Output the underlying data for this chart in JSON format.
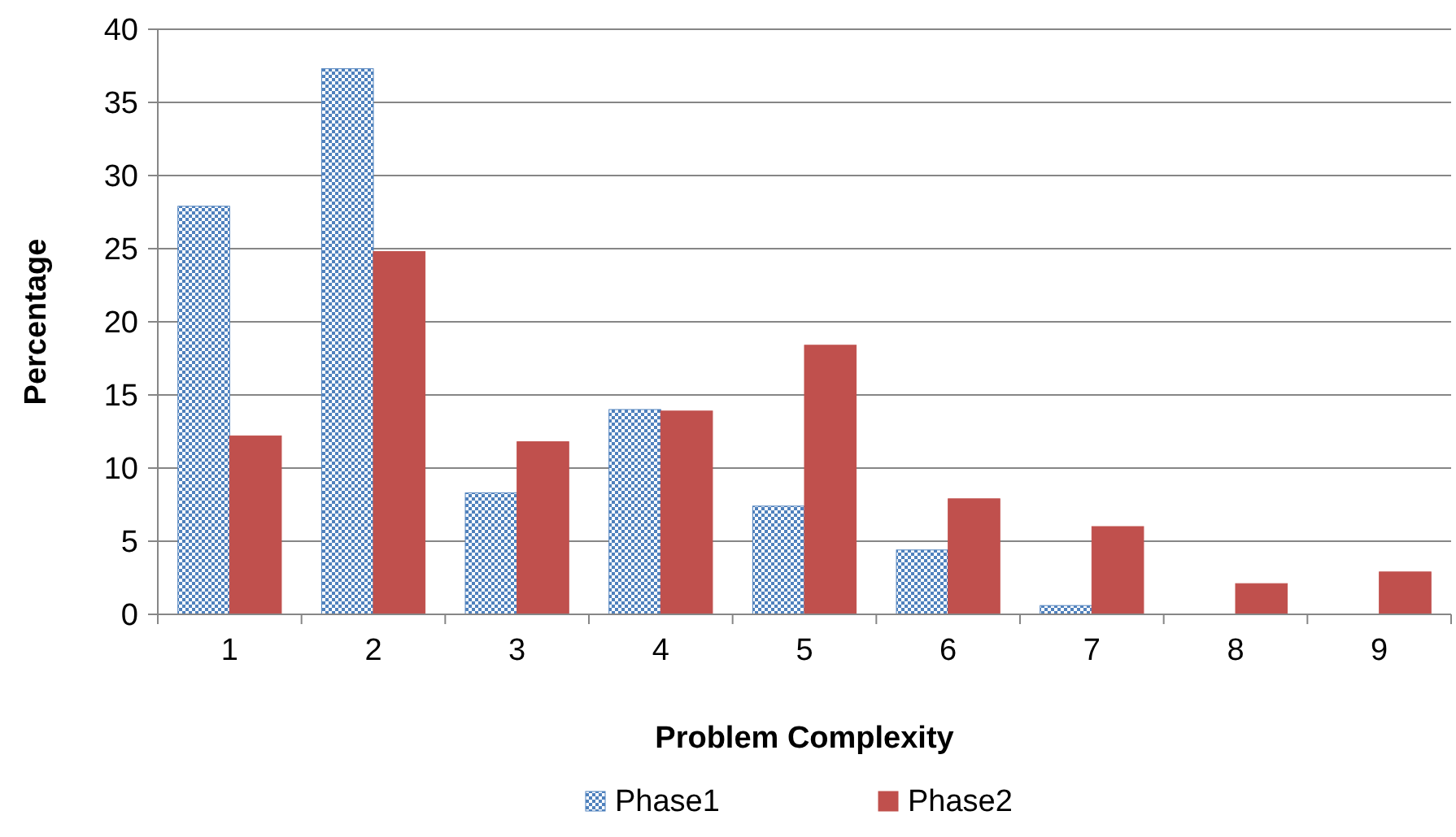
{
  "chart_data": {
    "type": "bar",
    "xlabel": "Problem Complexity",
    "ylabel": "Percentage",
    "categories": [
      "1",
      "2",
      "3",
      "4",
      "5",
      "6",
      "7",
      "8",
      "9"
    ],
    "series": [
      {
        "name": "Phase1",
        "color": "#4f81bd",
        "values": [
          27.9,
          37.3,
          8.3,
          14.0,
          7.4,
          4.4,
          0.6,
          0,
          0
        ]
      },
      {
        "name": "Phase2",
        "color": "#c0504d",
        "values": [
          12.2,
          24.8,
          11.8,
          13.9,
          18.4,
          7.9,
          6.0,
          2.1,
          2.9
        ]
      }
    ],
    "ylim": [
      0,
      40
    ],
    "yticks": [
      0,
      5,
      10,
      15,
      20,
      25,
      30,
      35,
      40
    ],
    "grid": "y",
    "legend": "bottom"
  }
}
